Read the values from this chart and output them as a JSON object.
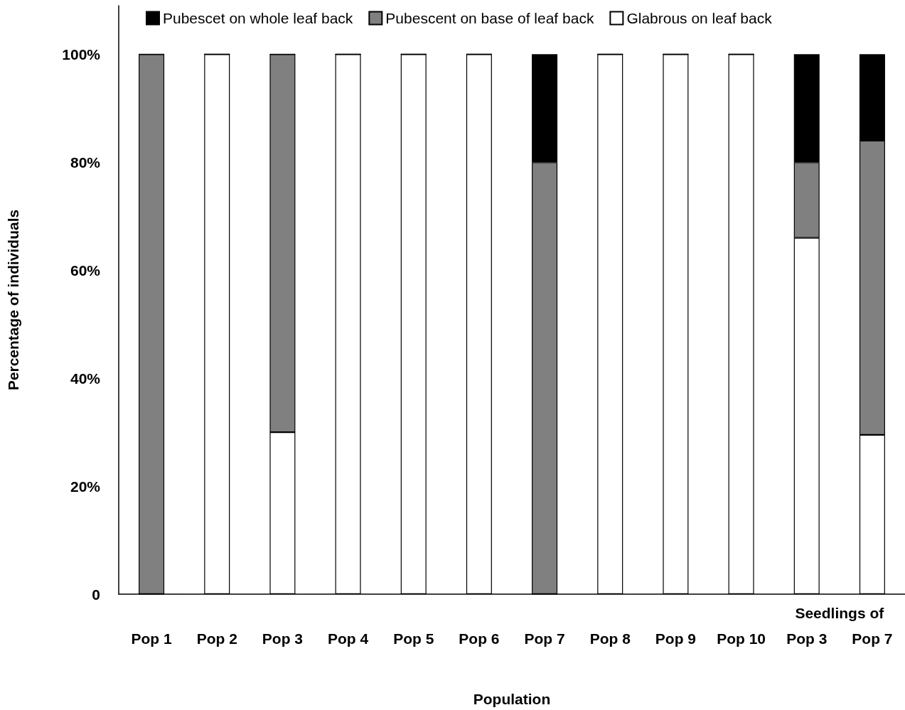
{
  "chart_data": {
    "type": "bar",
    "stacked": true,
    "xlabel": "Population",
    "ylabel": "Percentage of individuals",
    "categories": [
      "Pop 1",
      "Pop 2",
      "Pop 3",
      "Pop 4",
      "Pop 5",
      "Pop 6",
      "Pop 7",
      "Pop 8",
      "Pop 9",
      "Pop 10",
      "Pop 3",
      "Pop 7"
    ],
    "series": [
      {
        "name": "Glabrous on leaf back",
        "color": "#ffffff",
        "values": [
          0,
          100,
          30,
          100,
          100,
          100,
          0,
          100,
          100,
          100,
          66,
          29.5
        ]
      },
      {
        "name": "Pubescent on base of leaf back",
        "color": "#808080",
        "values": [
          100,
          0,
          70,
          0,
          0,
          0,
          80,
          0,
          0,
          0,
          14,
          54.5
        ]
      },
      {
        "name": "Pubescet on whole leaf back",
        "color": "#000000",
        "values": [
          0,
          0,
          0,
          0,
          0,
          0,
          20,
          0,
          0,
          0,
          20,
          16
        ]
      }
    ],
    "ylim": [
      0,
      109
    ],
    "yticks": [
      0,
      {
        "value": 20,
        "label": "20%"
      },
      {
        "value": 40,
        "label": "40%"
      },
      {
        "value": 60,
        "label": "60%"
      },
      {
        "value": 80,
        "label": "80%"
      },
      {
        "value": 100,
        "label": "100%"
      }
    ],
    "annotations": [
      "Seedlings of"
    ],
    "legend": "top",
    "grid": false
  }
}
